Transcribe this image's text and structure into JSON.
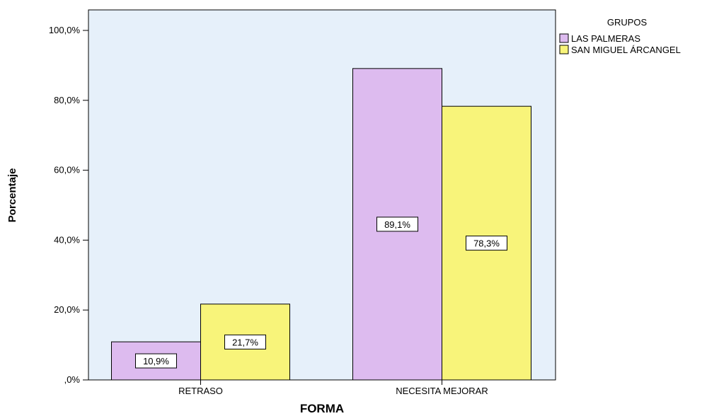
{
  "chart_data": {
    "type": "bar",
    "xlabel": "FORMA",
    "ylabel": "Porcentaje",
    "categories": [
      "RETRASO",
      "NECESITA MEJORAR"
    ],
    "series": [
      {
        "name": "LAS PALMERAS",
        "values": [
          10.9,
          89.1
        ],
        "labels": [
          "10,9%",
          "89,1%"
        ],
        "color": "#ddbbef"
      },
      {
        "name": "SAN MIGUEL ÁRCANGEL",
        "values": [
          21.7,
          78.3
        ],
        "labels": [
          "21,7%",
          "78,3%"
        ],
        "color": "#f8f47a"
      }
    ],
    "yticks": [
      0,
      20,
      40,
      60,
      80,
      100
    ],
    "ytick_labels": [
      ",0%",
      "20,0%",
      "40,0%",
      "60,0%",
      "80,0%",
      "100,0%"
    ],
    "ylim": [
      0,
      105
    ],
    "legend_title": "GRUPOS",
    "legend_position": "top-right",
    "plot_background": "#e6f0fa",
    "grid": false
  }
}
